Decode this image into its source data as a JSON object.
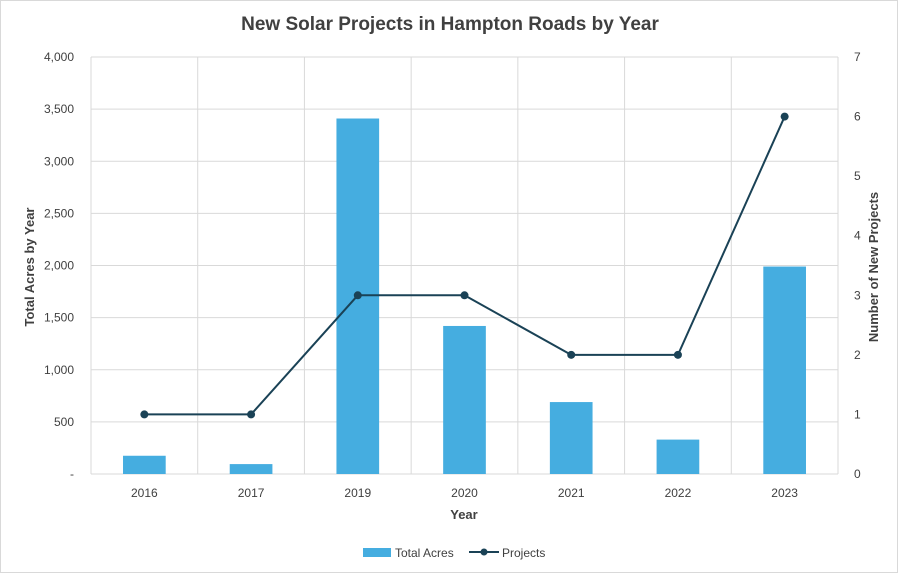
{
  "chart_data": {
    "type": "bar",
    "title": "New Solar Projects in Hampton Roads by Year",
    "xlabel": "Year",
    "ylabel": "Total Acres by Year",
    "y2label": "Number of New Projects",
    "categories": [
      "2016",
      "2017",
      "2019",
      "2020",
      "2021",
      "2022",
      "2023"
    ],
    "ylim": [
      0,
      4000
    ],
    "y_ticks": [
      "-",
      "500",
      "1,000",
      "1,500",
      "2,000",
      "2,500",
      "3,000",
      "3,500",
      "4,000"
    ],
    "y2lim": [
      0,
      7
    ],
    "y2_ticks": [
      "0",
      "1",
      "2",
      "3",
      "4",
      "5",
      "6",
      "7"
    ],
    "grid": true,
    "legend_position": "bottom",
    "series": [
      {
        "name": "Total Acres",
        "type": "bar",
        "axis": "left",
        "color": "#45ade0",
        "values": [
          175,
          95,
          3410,
          1420,
          690,
          330,
          1990
        ]
      },
      {
        "name": "Projects",
        "type": "line",
        "axis": "right",
        "color": "#1a4256",
        "values": [
          1,
          1,
          3,
          3,
          2,
          2,
          6
        ]
      }
    ]
  }
}
